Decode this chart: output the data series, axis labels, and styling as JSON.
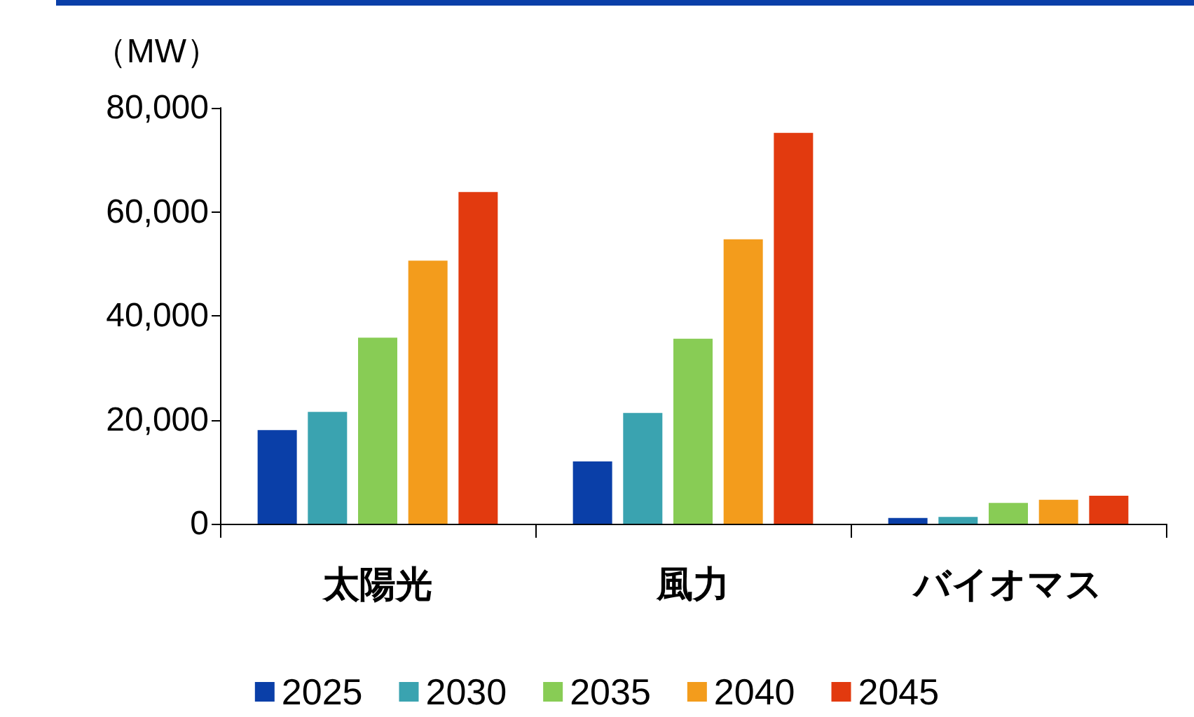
{
  "chart_data": {
    "type": "bar",
    "ylabel": "（MW）",
    "categories": [
      "太陽光",
      "風力",
      "バイオマス"
    ],
    "series": [
      {
        "name": "2025",
        "color": "#0a3fa8",
        "values": [
          18000,
          12000,
          1100
        ]
      },
      {
        "name": "2030",
        "color": "#3aa3b0",
        "values": [
          21500,
          21300,
          1300
        ]
      },
      {
        "name": "2035",
        "color": "#88cc55",
        "values": [
          35800,
          35600,
          4000
        ]
      },
      {
        "name": "2040",
        "color": "#f39c1c",
        "values": [
          50600,
          54700,
          4600
        ]
      },
      {
        "name": "2045",
        "color": "#e23a0f",
        "values": [
          63800,
          75200,
          5400
        ]
      }
    ],
    "ylim": [
      0,
      80000
    ],
    "yticks": [
      0,
      {
        "value": 20000,
        "label": "20,000"
      },
      {
        "value": 40000,
        "label": "40,000"
      },
      {
        "value": 60000,
        "label": "60,000"
      },
      {
        "value": 80000,
        "label": "80,000"
      }
    ],
    "grid": false,
    "legend": "bottom"
  }
}
